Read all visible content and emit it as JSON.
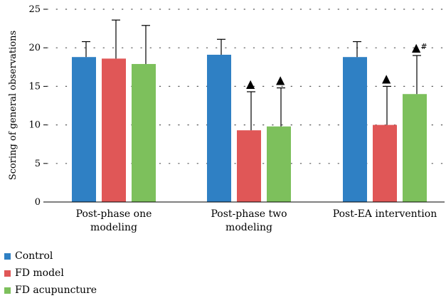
{
  "chart_data": {
    "type": "bar",
    "ylabel": "Scoring of general observations",
    "ylim": [
      0,
      25
    ],
    "yticks": [
      0,
      5,
      10,
      15,
      20,
      25
    ],
    "grid": "dotted horizontal",
    "legend_position": "bottom-left",
    "categories": [
      [
        "Post-phase one",
        "modeling"
      ],
      [
        "Post-phase two",
        "modeling"
      ],
      [
        "Post-EA intervention"
      ]
    ],
    "series": [
      {
        "name": "Control",
        "color": "#2F80C4",
        "values": [
          18.8,
          19.1,
          18.8
        ],
        "errors": [
          2.0,
          2.0,
          2.0
        ],
        "marks": [
          "",
          "",
          ""
        ]
      },
      {
        "name": "FD model",
        "color": "#E05757",
        "values": [
          18.6,
          9.3,
          10.0
        ],
        "errors": [
          5.0,
          5.0,
          5.0
        ],
        "marks": [
          "",
          "▲",
          "▲"
        ]
      },
      {
        "name": "FD acupuncture",
        "color": "#7DC05C",
        "values": [
          17.9,
          9.8,
          14.0
        ],
        "errors": [
          5.0,
          5.0,
          5.0
        ],
        "marks": [
          "",
          "▲",
          "▲#"
        ]
      }
    ]
  }
}
